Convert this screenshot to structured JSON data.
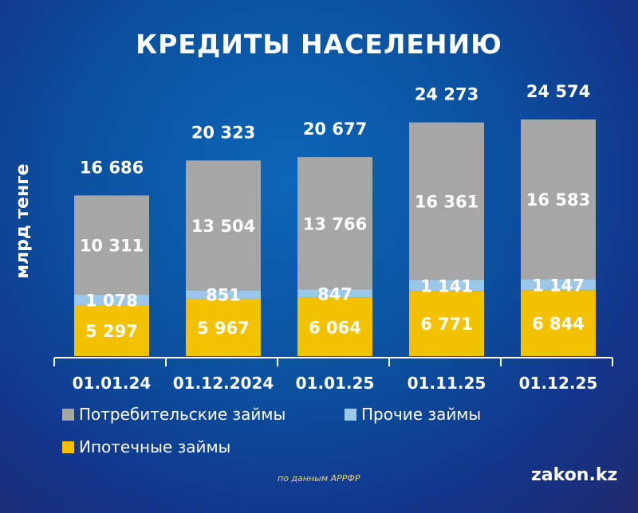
{
  "chart_data": {
    "type": "bar",
    "stacked": true,
    "title": "КРЕДИТЫ НАСЕЛЕНИЮ",
    "ylabel": "млрд тенге",
    "categories": [
      "01.01.24",
      "01.12.2024",
      "01.01.25",
      "01.11.25",
      "01.12.25"
    ],
    "series": [
      {
        "name": "Ипотечные займы",
        "color": "#f2c200",
        "values": [
          5297,
          5967,
          6064,
          6771,
          6844
        ],
        "labels": [
          "5 297",
          "5 967",
          "6 064",
          "6 771",
          "6 844"
        ]
      },
      {
        "name": "Прочие займы",
        "color": "#9cc8e8",
        "values": [
          1078,
          851,
          847,
          1141,
          1147
        ],
        "labels": [
          "1 078",
          "851",
          "847",
          "1 141",
          "1 147"
        ]
      },
      {
        "name": "Потребительские займы",
        "color": "#a6a6a6",
        "values": [
          10311,
          13504,
          13766,
          16361,
          16583
        ],
        "labels": [
          "10 311",
          "13 504",
          "13 766",
          "16 361",
          "16 583"
        ]
      }
    ],
    "totals": [
      16686,
      20323,
      20677,
      24273,
      24574
    ],
    "total_labels": [
      "16 686",
      "20 323",
      "20 677",
      "24 273",
      "24 574"
    ],
    "legend_placement": "bottom",
    "grid": false
  },
  "footer": {
    "source": "по данным АРРФР",
    "logo": "zakon.kz"
  }
}
